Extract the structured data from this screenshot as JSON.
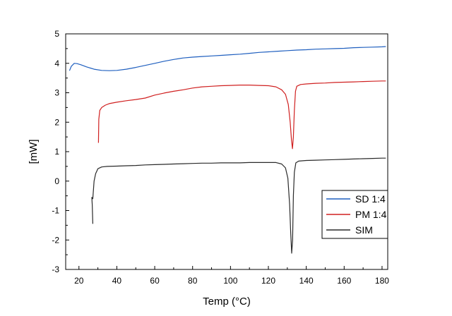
{
  "chart_data": {
    "type": "line",
    "title": "",
    "xlabel": "Temp (°C)",
    "ylabel": "[mW]",
    "xlim": [
      13,
      183
    ],
    "ylim": [
      -3,
      5
    ],
    "xticks": [
      20,
      40,
      60,
      80,
      100,
      120,
      140,
      160,
      180
    ],
    "yticks": [
      -3,
      -2,
      -1,
      0,
      1,
      2,
      3,
      4,
      5
    ],
    "grid": false,
    "legend_position": "bottom-right",
    "series": [
      {
        "name": "SD 1:4",
        "color": "#1f5fbf",
        "points": [
          [
            15,
            3.75
          ],
          [
            16,
            3.9
          ],
          [
            17.5,
            4.0
          ],
          [
            19,
            3.99
          ],
          [
            21,
            3.95
          ],
          [
            24,
            3.88
          ],
          [
            28,
            3.8
          ],
          [
            32,
            3.76
          ],
          [
            36,
            3.75
          ],
          [
            40,
            3.76
          ],
          [
            45,
            3.8
          ],
          [
            50,
            3.86
          ],
          [
            55,
            3.93
          ],
          [
            60,
            4.0
          ],
          [
            65,
            4.07
          ],
          [
            70,
            4.13
          ],
          [
            75,
            4.18
          ],
          [
            80,
            4.21
          ],
          [
            85,
            4.23
          ],
          [
            90,
            4.25
          ],
          [
            95,
            4.27
          ],
          [
            100,
            4.29
          ],
          [
            105,
            4.31
          ],
          [
            110,
            4.34
          ],
          [
            115,
            4.37
          ],
          [
            120,
            4.39
          ],
          [
            125,
            4.41
          ],
          [
            130,
            4.43
          ],
          [
            135,
            4.45
          ],
          [
            140,
            4.46
          ],
          [
            145,
            4.48
          ],
          [
            150,
            4.49
          ],
          [
            155,
            4.5
          ],
          [
            160,
            4.51
          ],
          [
            165,
            4.53
          ],
          [
            170,
            4.54
          ],
          [
            175,
            4.55
          ],
          [
            180,
            4.56
          ],
          [
            182,
            4.57
          ]
        ]
      },
      {
        "name": "PM 1:4",
        "color": "#d02020",
        "points": [
          [
            30.3,
            1.3
          ],
          [
            30.5,
            2.1
          ],
          [
            31,
            2.4
          ],
          [
            32,
            2.5
          ],
          [
            34,
            2.58
          ],
          [
            36,
            2.63
          ],
          [
            40,
            2.68
          ],
          [
            45,
            2.73
          ],
          [
            50,
            2.77
          ],
          [
            55,
            2.82
          ],
          [
            60,
            2.92
          ],
          [
            65,
            2.99
          ],
          [
            70,
            3.05
          ],
          [
            75,
            3.1
          ],
          [
            80,
            3.16
          ],
          [
            85,
            3.2
          ],
          [
            90,
            3.22
          ],
          [
            95,
            3.24
          ],
          [
            100,
            3.25
          ],
          [
            105,
            3.26
          ],
          [
            110,
            3.26
          ],
          [
            115,
            3.25
          ],
          [
            120,
            3.24
          ],
          [
            124,
            3.2
          ],
          [
            127,
            3.1
          ],
          [
            129,
            2.95
          ],
          [
            130.5,
            2.6
          ],
          [
            131.5,
            2.0
          ],
          [
            132.2,
            1.4
          ],
          [
            132.7,
            1.1
          ],
          [
            133.2,
            1.5
          ],
          [
            133.7,
            2.4
          ],
          [
            134.3,
            3.05
          ],
          [
            135,
            3.22
          ],
          [
            137,
            3.28
          ],
          [
            140,
            3.3
          ],
          [
            145,
            3.32
          ],
          [
            150,
            3.33
          ],
          [
            155,
            3.35
          ],
          [
            160,
            3.36
          ],
          [
            165,
            3.37
          ],
          [
            170,
            3.38
          ],
          [
            175,
            3.39
          ],
          [
            180,
            3.4
          ],
          [
            182,
            3.4
          ]
        ]
      },
      {
        "name": "SIM",
        "color": "#2a2a2a",
        "points": [
          [
            27.3,
            -1.45
          ],
          [
            27,
            -0.8
          ],
          [
            26.8,
            -0.55
          ],
          [
            27.3,
            -0.6
          ],
          [
            28,
            0.0
          ],
          [
            28.8,
            0.25
          ],
          [
            30,
            0.42
          ],
          [
            32,
            0.48
          ],
          [
            35,
            0.5
          ],
          [
            40,
            0.51
          ],
          [
            45,
            0.52
          ],
          [
            50,
            0.53
          ],
          [
            55,
            0.55
          ],
          [
            60,
            0.56
          ],
          [
            65,
            0.57
          ],
          [
            70,
            0.58
          ],
          [
            75,
            0.59
          ],
          [
            80,
            0.6
          ],
          [
            85,
            0.61
          ],
          [
            90,
            0.61
          ],
          [
            95,
            0.62
          ],
          [
            100,
            0.62
          ],
          [
            105,
            0.62
          ],
          [
            110,
            0.63
          ],
          [
            115,
            0.63
          ],
          [
            120,
            0.63
          ],
          [
            124,
            0.63
          ],
          [
            127,
            0.58
          ],
          [
            129,
            0.45
          ],
          [
            130.3,
            0.1
          ],
          [
            131.2,
            -0.8
          ],
          [
            131.8,
            -1.8
          ],
          [
            132.3,
            -2.45
          ],
          [
            132.8,
            -2.0
          ],
          [
            133.2,
            -0.5
          ],
          [
            133.7,
            0.3
          ],
          [
            134.5,
            0.62
          ],
          [
            136,
            0.68
          ],
          [
            140,
            0.7
          ],
          [
            145,
            0.71
          ],
          [
            150,
            0.72
          ],
          [
            155,
            0.73
          ],
          [
            160,
            0.74
          ],
          [
            165,
            0.75
          ],
          [
            170,
            0.76
          ],
          [
            175,
            0.77
          ],
          [
            180,
            0.78
          ],
          [
            182,
            0.78
          ]
        ]
      }
    ]
  }
}
